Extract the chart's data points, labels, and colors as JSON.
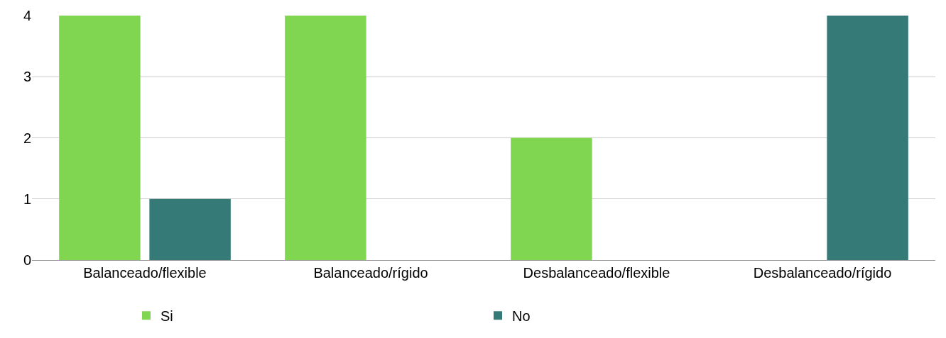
{
  "chart_data": {
    "type": "bar",
    "categories": [
      "Balanceado/flexible",
      "Balanceado/rígido",
      "Desbalanceado/flexible",
      "Desbalanceado/rígido"
    ],
    "series": [
      {
        "name": "Si",
        "color": "#80d651",
        "values": [
          4,
          4,
          2,
          0
        ]
      },
      {
        "name": "No",
        "color": "#357a76",
        "values": [
          1,
          0,
          0,
          4
        ]
      }
    ],
    "ylim": [
      0,
      4
    ],
    "yticks": [
      0,
      1,
      2,
      3,
      4
    ],
    "grid": "y",
    "legend": "bottom"
  }
}
